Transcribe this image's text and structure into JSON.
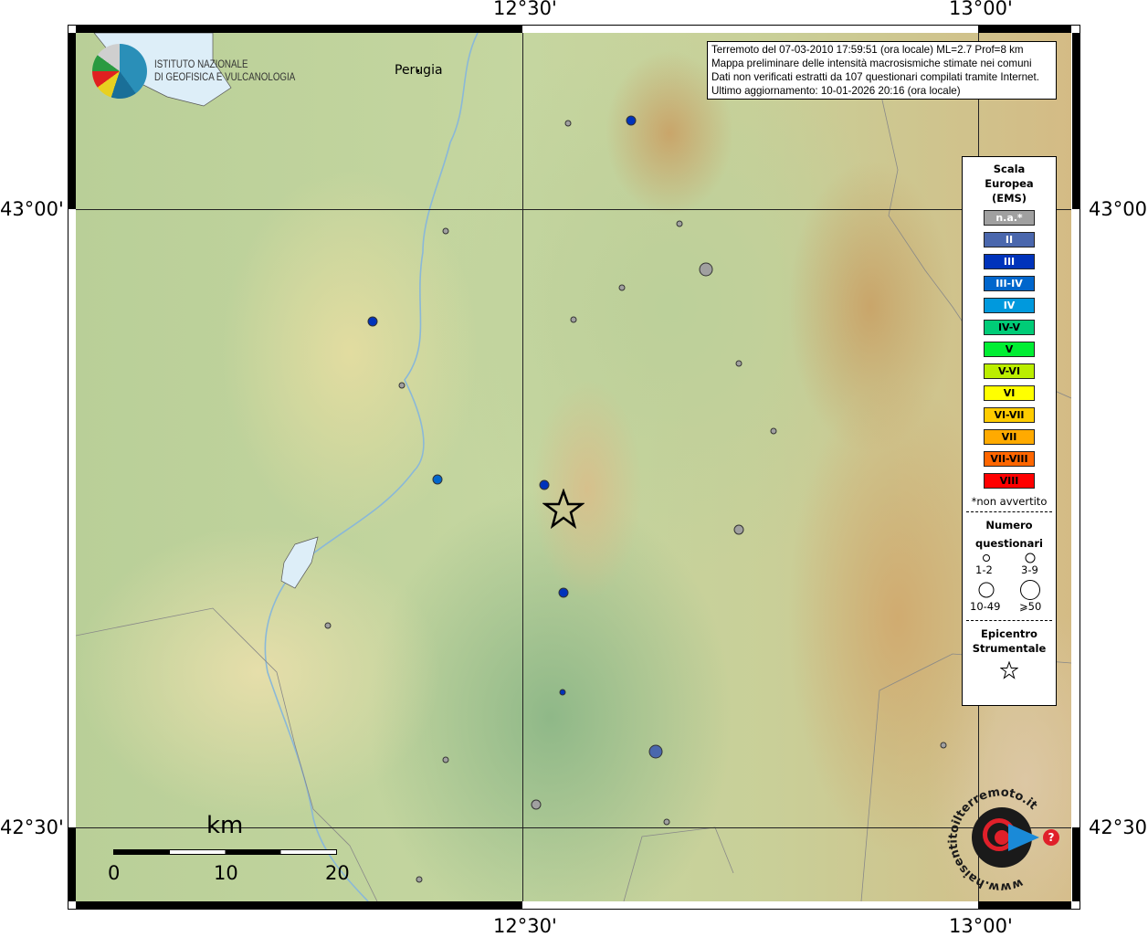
{
  "map": {
    "lon_labels": [
      "12°30'",
      "13°00'"
    ],
    "lat_labels": [
      "43°00'",
      "42°30'"
    ],
    "place": "Perugia",
    "scale_bar": {
      "unit": "km",
      "ticks": [
        "0",
        "10",
        "20"
      ]
    }
  },
  "logo": {
    "line1": "ISTITUTO NAZIONALE",
    "line2": "DI GEOFISICA E VULCANOLOGIA"
  },
  "info": {
    "line1": "Terremoto del 07-03-2010 17:59:51 (ora locale) ML=2.7 Prof=8 km",
    "line2": "Mappa preliminare delle intensità macrosismiche stimate nei comuni",
    "line3": "Dati non verificati estratti da 107 questionari compilati tramite Internet.",
    "line4": "Ultimo aggiornamento: 10-01-2026 20:16 (ora locale)"
  },
  "legend": {
    "title1": "Scala",
    "title2": "Europea",
    "title3": "(EMS)",
    "scale": [
      {
        "label": "n.a.*",
        "color": "#a0a0a0",
        "text": "#fff"
      },
      {
        "label": "II",
        "color": "#4a67ad",
        "text": "#fff"
      },
      {
        "label": "III",
        "color": "#0033bb",
        "text": "#fff"
      },
      {
        "label": "III-IV",
        "color": "#0066cc",
        "text": "#fff"
      },
      {
        "label": "IV",
        "color": "#0099dd",
        "text": "#fff"
      },
      {
        "label": "IV-V",
        "color": "#00cc77",
        "text": "#000"
      },
      {
        "label": "V",
        "color": "#00ee33",
        "text": "#000"
      },
      {
        "label": "V-VI",
        "color": "#bbee00",
        "text": "#000"
      },
      {
        "label": "VI",
        "color": "#ffff00",
        "text": "#000"
      },
      {
        "label": "VI-VII",
        "color": "#ffcc00",
        "text": "#000"
      },
      {
        "label": "VII",
        "color": "#ffaa00",
        "text": "#000"
      },
      {
        "label": "VII-VIII",
        "color": "#ff6600",
        "text": "#000"
      },
      {
        "label": "VIII",
        "color": "#ff0000",
        "text": "#000"
      }
    ],
    "note": "*non avvertito",
    "count_title1": "Numero",
    "count_title2": "questionari",
    "counts": [
      "1-2",
      "3-9",
      "10-49",
      "⩾50"
    ],
    "epi1": "Epicentro",
    "epi2": "Strumentale"
  },
  "badge": {
    "text": "www.haisentitoilterremoto.it"
  }
}
